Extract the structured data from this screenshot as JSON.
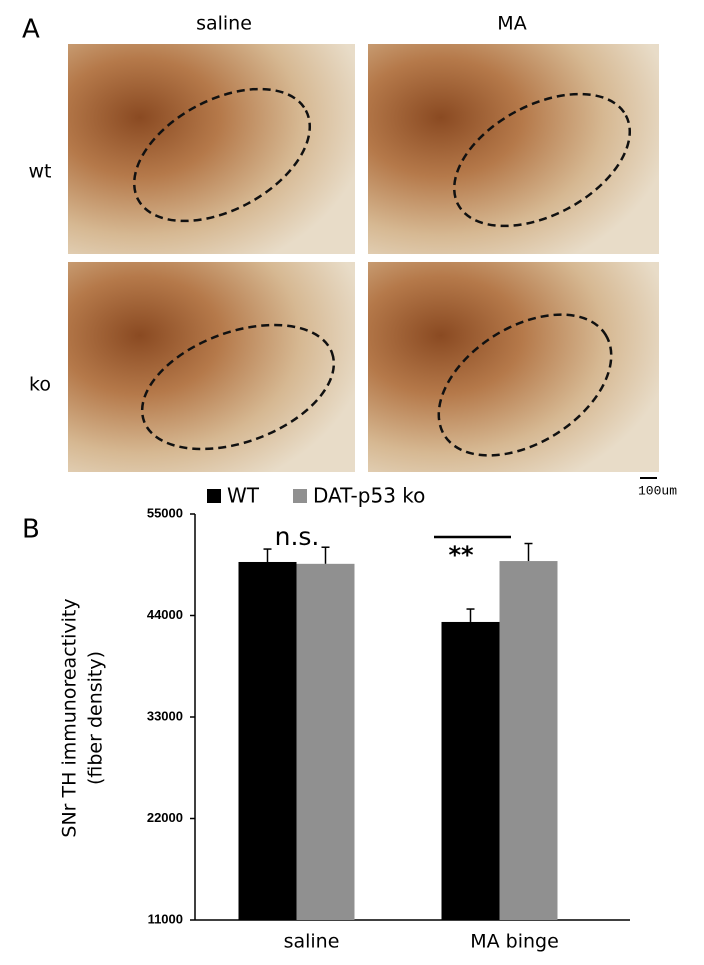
{
  "panel_labels": [
    "A",
    "B"
  ],
  "micrographs": {
    "columns": [
      "saline",
      "MA"
    ],
    "rows": [
      "wt",
      "ko"
    ],
    "scale_bar": "100um"
  },
  "chart_data": {
    "type": "bar",
    "ylabel": [
      "SNr TH immunoreactivity",
      "(fiber density)"
    ],
    "categories": [
      "saline",
      "MA binge"
    ],
    "series": [
      {
        "name": "WT",
        "color": "#000000",
        "values": [
          49800,
          43300
        ],
        "errors": [
          1400,
          1400
        ]
      },
      {
        "name": "DAT-p53 ko",
        "color": "#909090",
        "values": [
          49600,
          49900
        ],
        "errors": [
          1800,
          1900
        ]
      }
    ],
    "ylim": [
      11000,
      55000
    ],
    "yticks": [
      11000,
      22000,
      33000,
      44000,
      55000
    ],
    "annotations": [
      "n.s.",
      "**"
    ],
    "legend": "top"
  }
}
